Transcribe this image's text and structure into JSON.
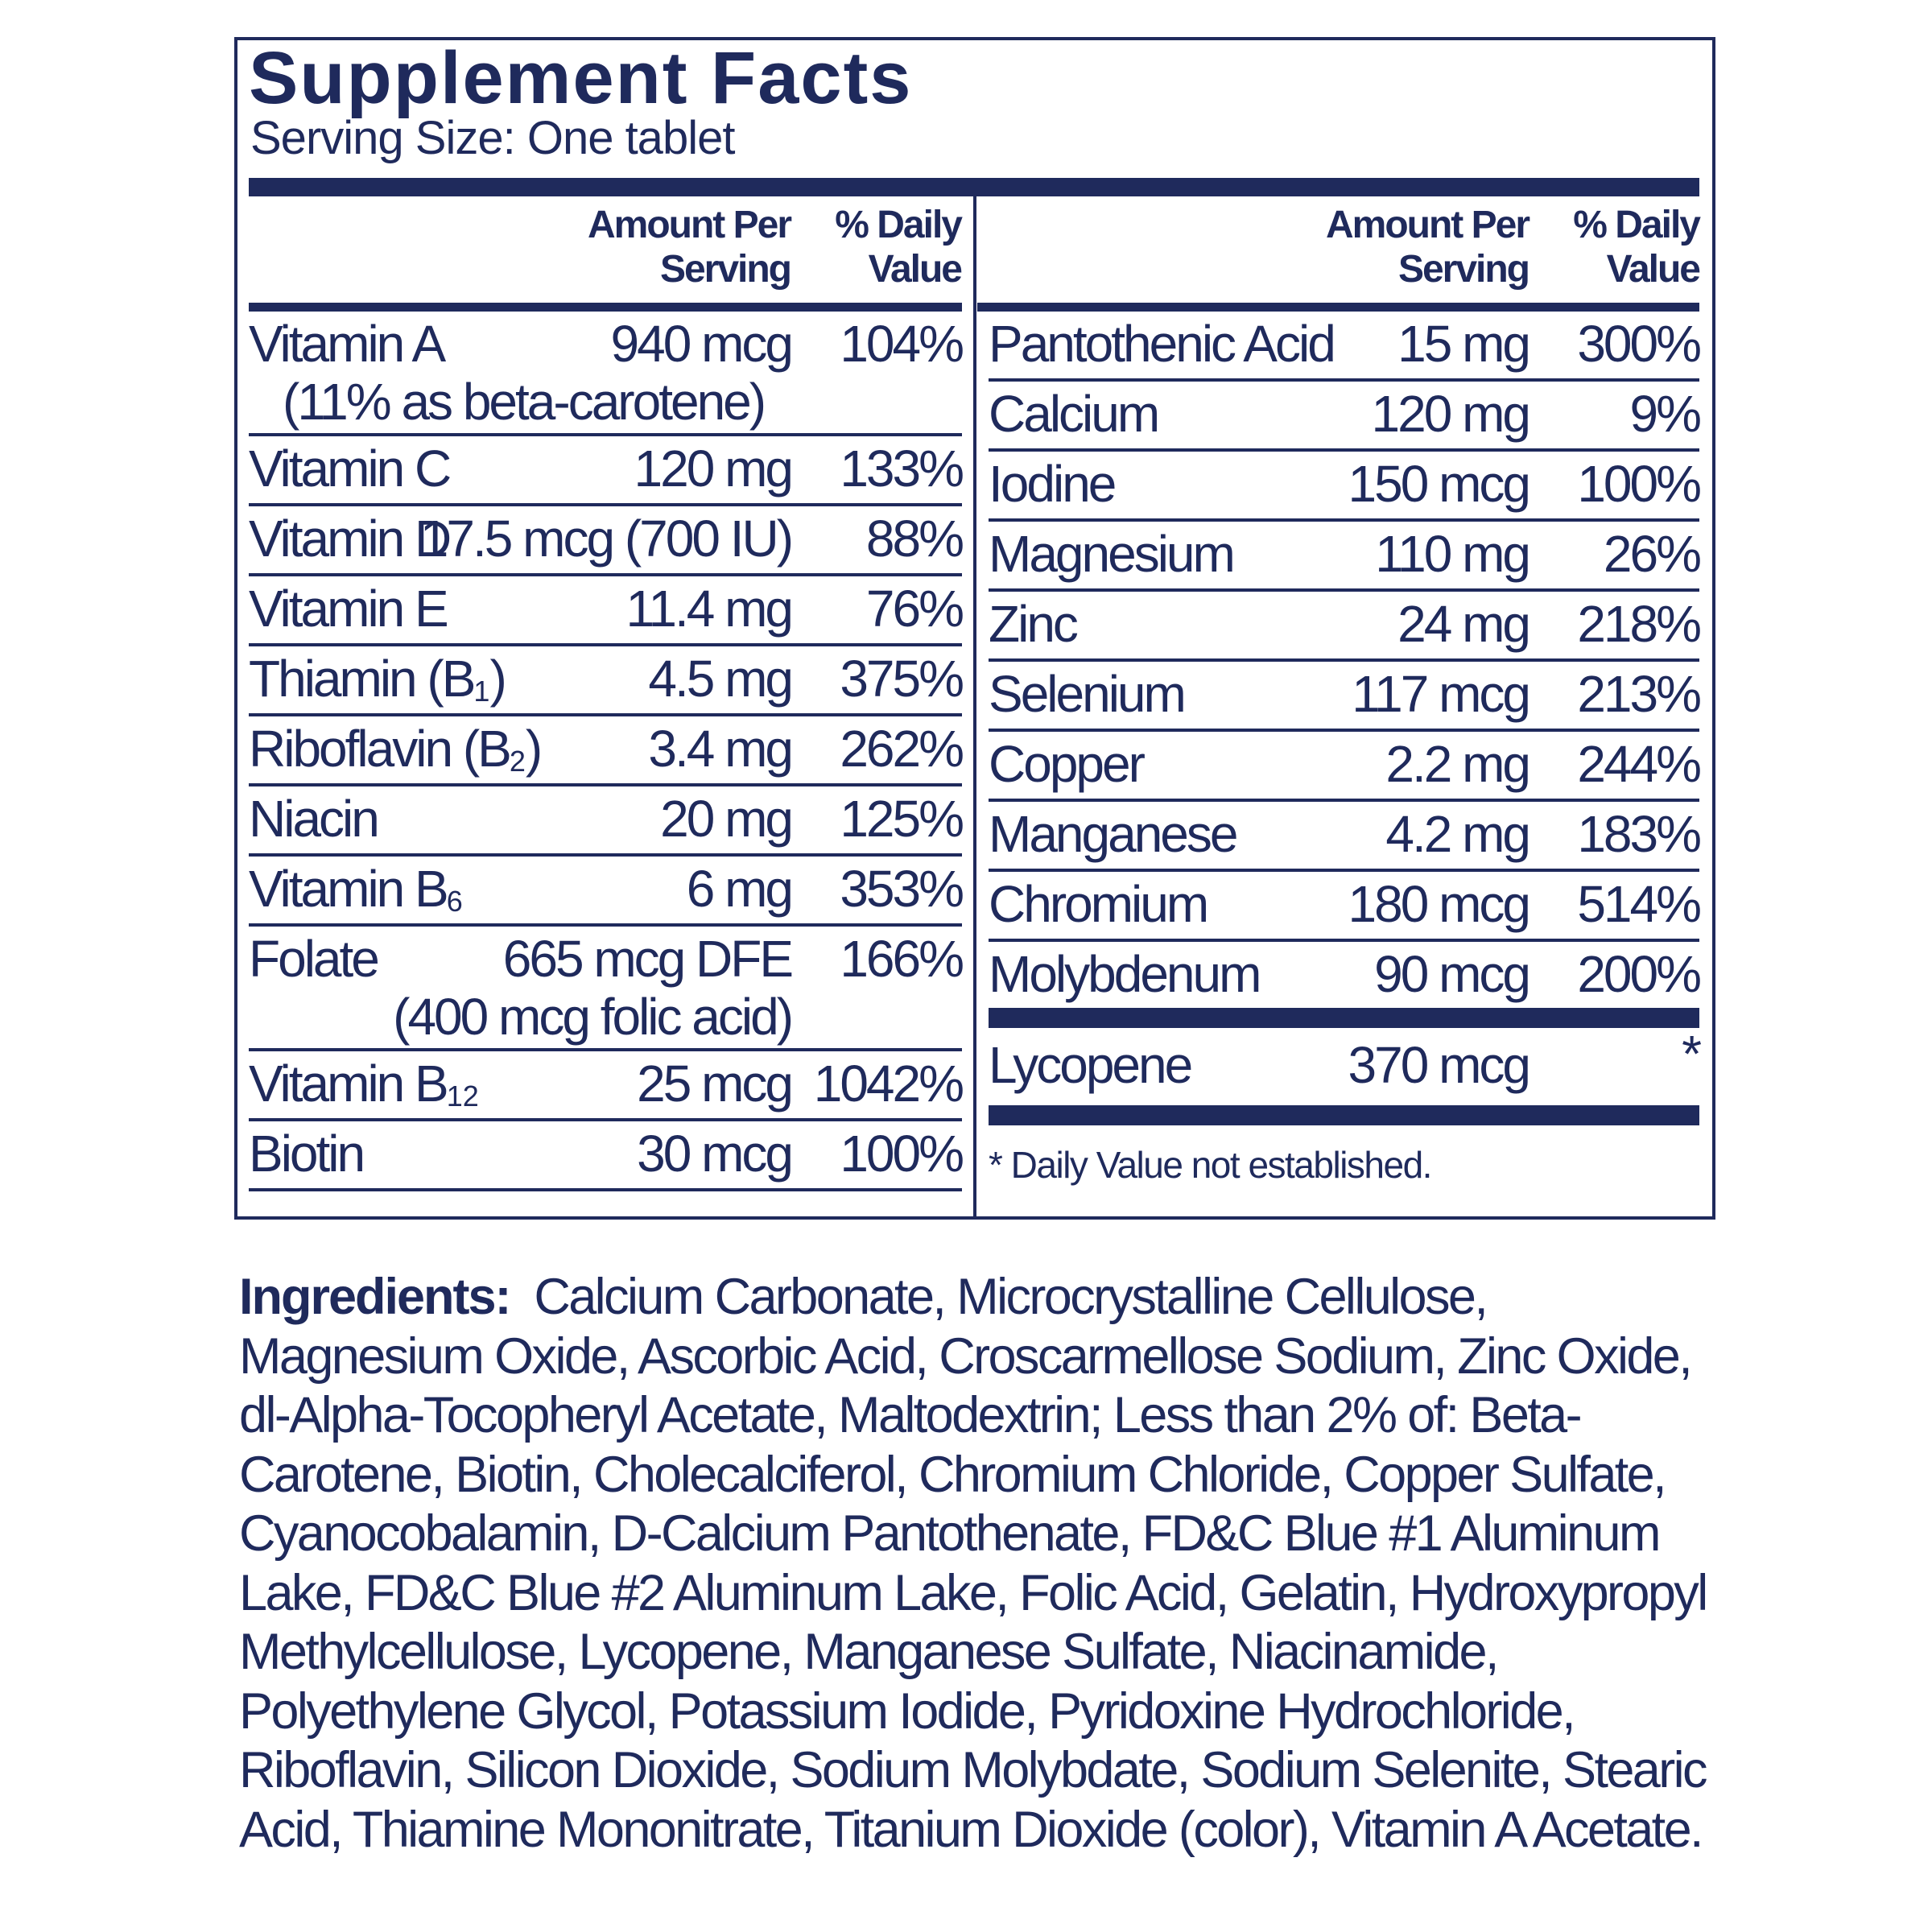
{
  "title": "Supplement Facts",
  "serving_size": "Serving Size: One tablet",
  "headers": {
    "amount": [
      "Amount Per",
      "Serving"
    ],
    "dv": [
      "% Daily",
      "Value"
    ]
  },
  "left_rows": [
    {
      "name": "Vitamin A",
      "sub": "",
      "after": "",
      "amount": "940 mcg",
      "dv": "104%",
      "note": "(11% as beta-carotene)"
    },
    {
      "name": "Vitamin C",
      "sub": "",
      "after": "",
      "amount": "120 mg",
      "dv": "133%"
    },
    {
      "name": "Vitamin D",
      "sub": "",
      "after": "",
      "amount": "17.5 mcg (700 IU)",
      "dv": "88%"
    },
    {
      "name": "Vitamin E",
      "sub": "",
      "after": "",
      "amount": "11.4 mg",
      "dv": "76%"
    },
    {
      "name": "Thiamin (B",
      "sub": "1",
      "after": ")",
      "amount": "4.5 mg",
      "dv": "375%"
    },
    {
      "name": "Riboflavin (B",
      "sub": "2",
      "after": ")",
      "amount": "3.4 mg",
      "dv": "262%"
    },
    {
      "name": "Niacin",
      "sub": "",
      "after": "",
      "amount": "20 mg",
      "dv": "125%"
    },
    {
      "name": "Vitamin B",
      "sub": "6",
      "after": "",
      "amount": "6 mg",
      "dv": "353%"
    },
    {
      "name": "Folate",
      "sub": "",
      "after": "",
      "amount": "665 mcg DFE",
      "dv": "166%",
      "note": "(400 mcg folic acid)"
    },
    {
      "name": "Vitamin B",
      "sub": "12",
      "after": "",
      "amount": "25 mcg",
      "dv": "1042%"
    },
    {
      "name": "Biotin",
      "sub": "",
      "after": "",
      "amount": "30 mcg",
      "dv": "100%"
    }
  ],
  "right_rows": [
    {
      "name": "Pantothenic Acid",
      "amount": "15 mg",
      "dv": "300%"
    },
    {
      "name": "Calcium",
      "amount": "120 mg",
      "dv": "9%"
    },
    {
      "name": "Iodine",
      "amount": "150 mcg",
      "dv": "100%"
    },
    {
      "name": "Magnesium",
      "amount": "110 mg",
      "dv": "26%"
    },
    {
      "name": "Zinc",
      "amount": "24 mg",
      "dv": "218%"
    },
    {
      "name": "Selenium",
      "amount": "117 mcg",
      "dv": "213%"
    },
    {
      "name": "Copper",
      "amount": "2.2 mg",
      "dv": "244%"
    },
    {
      "name": "Manganese",
      "amount": "4.2 mg",
      "dv": "183%"
    },
    {
      "name": "Chromium",
      "amount": "180 mcg",
      "dv": "514%"
    },
    {
      "name": "Molybdenum",
      "amount": "90 mcg",
      "dv": "200%"
    }
  ],
  "lycopene": {
    "name": "Lycopene",
    "amount": "370 mcg",
    "dv": "*"
  },
  "footnote": "* Daily Value not established.",
  "ingredients": {
    "label": "Ingredients:",
    "text": "Calcium Carbonate, Microcrystalline Cellulose, Magnesium Oxide, Ascorbic Acid, Croscarmellose Sodium, Zinc Oxide, dl-Alpha-Tocopheryl Acetate, Maltodextrin; Less than 2% of: Beta-Carotene, Biotin, Cholecalciferol, Chromium Chloride, Copper Sulfate, Cyanocobalamin, D-Calcium Pantothenate, FD&C Blue #1 Aluminum Lake, FD&C Blue #2 Aluminum Lake, Folic Acid, Gelatin, Hydroxypropyl Methylcellulose, Lycopene, Manganese Sulfate, Niacinamide, Polyethylene Glycol, Potassium Iodide, Pyridoxine Hydrochloride, Riboflavin, Silicon Dioxide, Sodium Molybdate, Sodium Selenite, Stearic Acid, Thiamine Mononitrate, Titanium Dioxide (color), Vitamin A Acetate."
  },
  "colors": {
    "ink": "#1f2a5c",
    "background": "#ffffff"
  }
}
